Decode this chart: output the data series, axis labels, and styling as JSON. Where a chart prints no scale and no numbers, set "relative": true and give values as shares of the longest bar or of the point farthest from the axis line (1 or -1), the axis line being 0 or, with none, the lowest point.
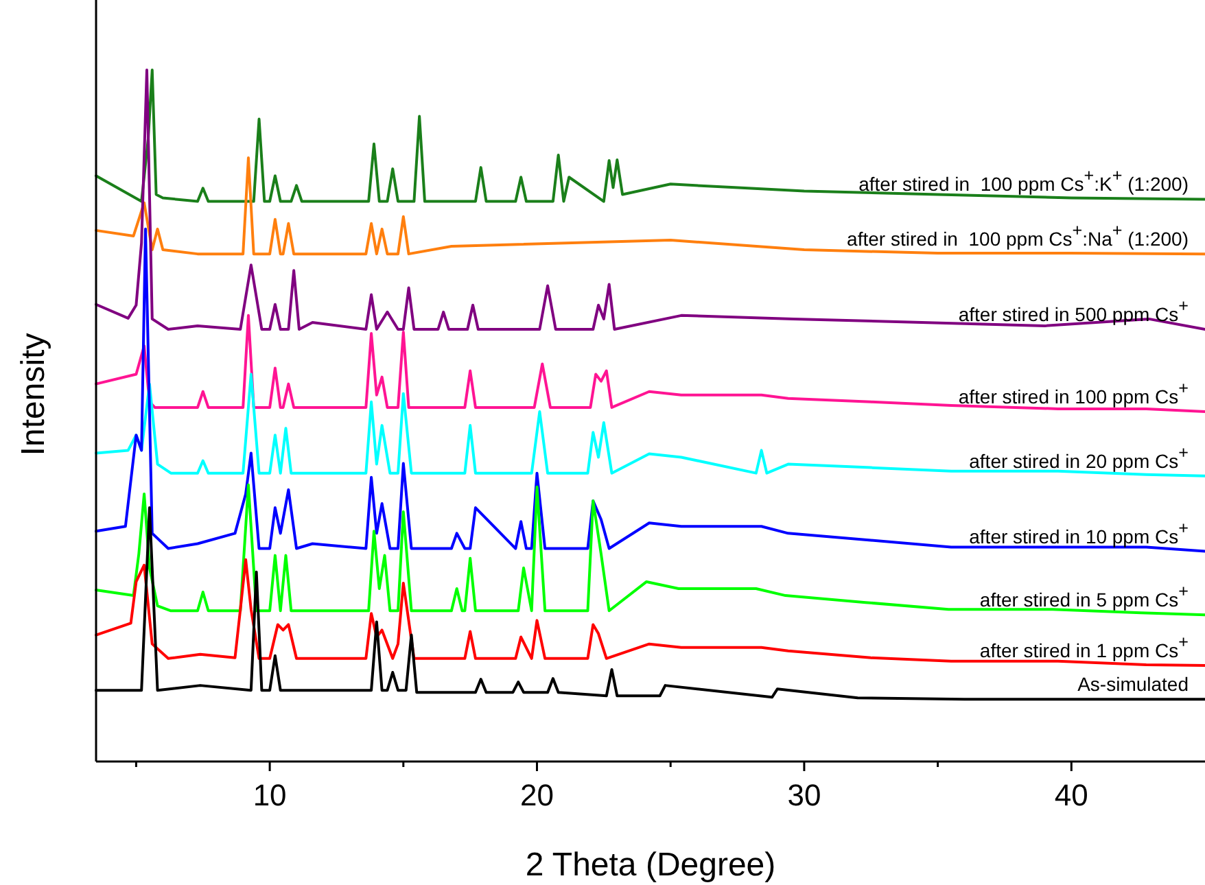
{
  "chart_data": {
    "type": "line",
    "xlabel": "2 Theta (Degree)",
    "ylabel": "Intensity",
    "relative": true,
    "xlim": [
      3.5,
      45
    ],
    "xticks": [
      {
        "value": 5,
        "label": null
      },
      10,
      {
        "value": 15,
        "label": null
      },
      20,
      {
        "value": 25,
        "label": null
      },
      30,
      {
        "value": 35,
        "label": null
      },
      40
    ],
    "series": [
      {
        "name": "after stired in  100 ppm Cs$^{+}$:K$^{+}$ (1:200)",
        "color": "#1a7f1a",
        "x": [
          3.5,
          5.2,
          5.45,
          5.6,
          5.75,
          6.0,
          7.3,
          7.5,
          7.7,
          9.4,
          9.6,
          9.8,
          10.0,
          10.2,
          10.4,
          10.8,
          11.0,
          11.2,
          13.7,
          13.9,
          14.1,
          14.4,
          14.6,
          14.8,
          15.4,
          15.6,
          15.8,
          17.7,
          17.9,
          18.1,
          19.2,
          19.4,
          19.6,
          20.6,
          20.8,
          21.0,
          21.2,
          22.5,
          22.7,
          22.85,
          23.0,
          23.2,
          25,
          27.4,
          30,
          35,
          40,
          45
        ],
        "values": [
          0.847,
          0.81,
          0.9,
          1.0,
          0.82,
          0.815,
          0.81,
          0.829,
          0.81,
          0.81,
          0.929,
          0.81,
          0.81,
          0.847,
          0.81,
          0.81,
          0.833,
          0.81,
          0.81,
          0.893,
          0.81,
          0.81,
          0.857,
          0.81,
          0.81,
          0.933,
          0.81,
          0.81,
          0.859,
          0.81,
          0.81,
          0.845,
          0.81,
          0.81,
          0.877,
          0.81,
          0.845,
          0.81,
          0.869,
          0.83,
          0.87,
          0.82,
          0.835,
          0.83,
          0.825,
          0.82,
          0.815,
          0.813
        ]
      },
      {
        "name": "after stired in  100 ppm Cs$^{+}$:Na$^{+}$ (1:200)",
        "color": "#ff7f0e",
        "x": [
          3.5,
          4.9,
          5.3,
          5.6,
          5.8,
          6.0,
          7.3,
          9.0,
          9.2,
          9.4,
          10.0,
          10.2,
          10.4,
          10.5,
          10.7,
          10.9,
          13.6,
          13.8,
          14.0,
          14.2,
          14.4,
          14.8,
          15.0,
          15.2,
          16.8,
          25.0,
          30,
          35,
          40,
          45
        ],
        "values": [
          0.768,
          0.76,
          0.808,
          0.74,
          0.77,
          0.74,
          0.734,
          0.734,
          0.873,
          0.734,
          0.734,
          0.784,
          0.734,
          0.734,
          0.778,
          0.734,
          0.734,
          0.778,
          0.734,
          0.77,
          0.734,
          0.734,
          0.788,
          0.734,
          0.745,
          0.754,
          0.74,
          0.735,
          0.735,
          0.734
        ]
      },
      {
        "name": "after stired in 500 ppm Cs$^{+}$",
        "color": "#800080",
        "x": [
          3.5,
          4.7,
          5.0,
          5.2,
          5.4,
          5.6,
          6.2,
          7.3,
          8.9,
          9.3,
          9.7,
          10.0,
          10.2,
          10.4,
          10.7,
          10.9,
          11.1,
          11.6,
          13.6,
          13.8,
          14.0,
          14.4,
          14.8,
          15.0,
          15.2,
          15.4,
          16.3,
          16.5,
          16.7,
          17.4,
          17.6,
          17.8,
          20.1,
          20.4,
          20.7,
          22.1,
          22.3,
          22.5,
          22.7,
          22.9,
          25.4,
          29.6,
          34.4,
          39.0,
          42.9,
          45
        ],
        "values": [
          0.661,
          0.641,
          0.66,
          0.75,
          1.0,
          0.64,
          0.625,
          0.63,
          0.625,
          0.718,
          0.625,
          0.625,
          0.661,
          0.625,
          0.625,
          0.71,
          0.625,
          0.635,
          0.625,
          0.675,
          0.625,
          0.65,
          0.625,
          0.625,
          0.685,
          0.625,
          0.625,
          0.65,
          0.625,
          0.625,
          0.66,
          0.625,
          0.625,
          0.688,
          0.625,
          0.625,
          0.66,
          0.64,
          0.69,
          0.625,
          0.645,
          0.64,
          0.635,
          0.63,
          0.64,
          0.625
        ]
      },
      {
        "name": "after stired in 100 ppm Cs$^{+}$",
        "color": "#ff1493",
        "x": [
          3.5,
          5.0,
          5.3,
          5.5,
          5.7,
          6.2,
          7.3,
          7.5,
          7.7,
          9.0,
          9.2,
          9.4,
          10.0,
          10.2,
          10.4,
          10.5,
          10.7,
          10.9,
          13.6,
          13.8,
          14.0,
          14.2,
          14.4,
          14.8,
          15.0,
          15.2,
          17.3,
          17.5,
          17.7,
          19.9,
          20.2,
          20.5,
          22.0,
          22.2,
          22.4,
          22.6,
          22.8,
          24.2,
          25.4,
          28.4,
          29.4,
          32.5,
          35.5,
          39.5,
          42.8,
          45
        ],
        "values": [
          0.546,
          0.56,
          0.601,
          0.52,
          0.512,
          0.512,
          0.512,
          0.535,
          0.512,
          0.512,
          0.645,
          0.512,
          0.512,
          0.569,
          0.512,
          0.512,
          0.546,
          0.512,
          0.512,
          0.619,
          0.53,
          0.556,
          0.512,
          0.512,
          0.621,
          0.512,
          0.512,
          0.565,
          0.512,
          0.512,
          0.575,
          0.512,
          0.512,
          0.56,
          0.55,
          0.565,
          0.512,
          0.535,
          0.53,
          0.53,
          0.525,
          0.52,
          0.515,
          0.51,
          0.51,
          0.506
        ]
      },
      {
        "name": "after stired in 20 ppm Cs$^{+}$",
        "color": "#00ffff",
        "x": [
          3.5,
          4.7,
          5.0,
          5.2,
          5.5,
          5.8,
          6.3,
          7.3,
          7.5,
          7.7,
          9.0,
          9.3,
          9.6,
          10.0,
          10.2,
          10.4,
          10.6,
          10.8,
          13.6,
          13.8,
          14.0,
          14.2,
          14.5,
          14.8,
          15.0,
          15.3,
          17.3,
          17.5,
          17.7,
          19.8,
          20.1,
          20.4,
          21.9,
          22.1,
          22.3,
          22.5,
          22.8,
          24.2,
          25.4,
          28.2,
          28.4,
          28.6,
          29.4,
          32.5,
          35.5,
          39.5,
          42.8,
          45
        ],
        "values": [
          0.446,
          0.45,
          0.472,
          0.45,
          0.546,
          0.43,
          0.417,
          0.417,
          0.435,
          0.417,
          0.417,
          0.56,
          0.417,
          0.417,
          0.472,
          0.417,
          0.482,
          0.417,
          0.417,
          0.52,
          0.43,
          0.486,
          0.417,
          0.417,
          0.532,
          0.417,
          0.417,
          0.486,
          0.417,
          0.417,
          0.506,
          0.417,
          0.417,
          0.476,
          0.44,
          0.49,
          0.417,
          0.445,
          0.44,
          0.417,
          0.45,
          0.417,
          0.43,
          0.425,
          0.42,
          0.42,
          0.415,
          0.413
        ]
      },
      {
        "name": "after stired in 10 ppm Cs$^{+}$",
        "color": "#0000ff",
        "x": [
          3.5,
          4.6,
          5.0,
          5.2,
          5.35,
          5.6,
          6.2,
          7.3,
          8.7,
          9.1,
          9.3,
          9.6,
          10.0,
          10.2,
          10.4,
          10.7,
          11.0,
          11.6,
          13.6,
          13.8,
          14.0,
          14.2,
          14.5,
          14.8,
          15.0,
          15.3,
          16.8,
          17.0,
          17.3,
          17.5,
          17.7,
          19.2,
          19.4,
          19.6,
          19.8,
          20.0,
          20.3,
          21.9,
          22.1,
          22.4,
          22.7,
          24.2,
          25.4,
          28.4,
          29.4,
          32.5,
          35.5,
          39.5,
          42.8,
          45
        ],
        "values": [
          0.333,
          0.34,
          0.472,
          0.45,
          0.77,
          0.33,
          0.308,
          0.315,
          0.33,
          0.387,
          0.446,
          0.308,
          0.308,
          0.367,
          0.33,
          0.393,
          0.308,
          0.315,
          0.308,
          0.411,
          0.33,
          0.373,
          0.308,
          0.308,
          0.431,
          0.308,
          0.308,
          0.33,
          0.308,
          0.308,
          0.367,
          0.308,
          0.347,
          0.308,
          0.308,
          0.417,
          0.308,
          0.308,
          0.377,
          0.35,
          0.308,
          0.345,
          0.34,
          0.34,
          0.33,
          0.32,
          0.31,
          0.31,
          0.31,
          0.304
        ]
      },
      {
        "name": "after stired in 5 ppm Cs$^{+}$",
        "color": "#00ff00",
        "x": [
          3.5,
          4.9,
          5.1,
          5.3,
          5.5,
          5.8,
          6.3,
          7.3,
          7.5,
          7.7,
          8.9,
          9.2,
          9.5,
          10.0,
          10.2,
          10.4,
          10.6,
          10.8,
          13.7,
          13.9,
          14.1,
          14.3,
          14.5,
          14.8,
          15.0,
          15.3,
          16.8,
          17.0,
          17.2,
          17.3,
          17.5,
          17.7,
          19.3,
          19.5,
          19.8,
          20.0,
          20.3,
          21.9,
          22.1,
          22.4,
          22.7,
          24.1,
          25.3,
          28.2,
          29.3,
          32.3,
          35.4,
          39.3,
          42.6,
          45
        ],
        "values": [
          0.248,
          0.24,
          0.3,
          0.387,
          0.28,
          0.225,
          0.218,
          0.218,
          0.245,
          0.218,
          0.218,
          0.4,
          0.218,
          0.218,
          0.298,
          0.218,
          0.298,
          0.218,
          0.218,
          0.333,
          0.25,
          0.298,
          0.218,
          0.218,
          0.361,
          0.218,
          0.218,
          0.25,
          0.218,
          0.218,
          0.294,
          0.218,
          0.218,
          0.28,
          0.218,
          0.397,
          0.218,
          0.218,
          0.377,
          0.3,
          0.218,
          0.26,
          0.25,
          0.25,
          0.24,
          0.23,
          0.22,
          0.22,
          0.215,
          0.212
        ]
      },
      {
        "name": "after stired in 1 ppm Cs$^{+}$",
        "color": "#ff0000",
        "x": [
          3.5,
          4.8,
          5.0,
          5.3,
          5.6,
          6.2,
          7.4,
          8.7,
          8.9,
          9.1,
          9.3,
          9.6,
          10.0,
          10.3,
          10.5,
          10.7,
          11.0,
          13.6,
          13.8,
          14.0,
          14.2,
          14.6,
          14.8,
          15.0,
          15.4,
          17.3,
          17.5,
          17.7,
          19.2,
          19.4,
          19.8,
          20.0,
          20.3,
          21.9,
          22.1,
          22.3,
          22.6,
          24.2,
          25.4,
          28.4,
          29.4,
          32.5,
          35.5,
          39.5,
          42.8,
          45
        ],
        "values": [
          0.183,
          0.2,
          0.26,
          0.284,
          0.17,
          0.149,
          0.155,
          0.15,
          0.22,
          0.292,
          0.22,
          0.149,
          0.149,
          0.198,
          0.19,
          0.198,
          0.149,
          0.149,
          0.214,
          0.18,
          0.19,
          0.149,
          0.17,
          0.258,
          0.149,
          0.149,
          0.188,
          0.149,
          0.149,
          0.18,
          0.149,
          0.204,
          0.149,
          0.149,
          0.198,
          0.185,
          0.149,
          0.17,
          0.165,
          0.165,
          0.16,
          0.15,
          0.145,
          0.145,
          0.14,
          0.139
        ]
      },
      {
        "name": "As-simulated",
        "color": "#000000",
        "x": [
          3.5,
          5.2,
          5.5,
          5.8,
          7.4,
          9.3,
          9.5,
          9.7,
          10.0,
          10.2,
          10.4,
          12,
          13.8,
          14.0,
          14.2,
          14.4,
          14.6,
          14.8,
          15.1,
          15.3,
          15.5,
          17.7,
          17.9,
          18.1,
          19.1,
          19.3,
          19.5,
          20.4,
          20.6,
          20.8,
          22.6,
          22.8,
          23.0,
          24.6,
          24.8,
          28.8,
          29.0,
          32,
          36,
          39,
          43,
          45
        ],
        "values": [
          0.103,
          0.103,
          0.367,
          0.103,
          0.11,
          0.103,
          0.274,
          0.103,
          0.103,
          0.153,
          0.103,
          0.103,
          0.103,
          0.202,
          0.103,
          0.103,
          0.129,
          0.103,
          0.103,
          0.183,
          0.1,
          0.1,
          0.119,
          0.1,
          0.1,
          0.115,
          0.1,
          0.1,
          0.12,
          0.1,
          0.095,
          0.133,
          0.095,
          0.095,
          0.11,
          0.093,
          0.105,
          0.092,
          0.09,
          0.09,
          0.09,
          0.09
        ]
      }
    ]
  }
}
